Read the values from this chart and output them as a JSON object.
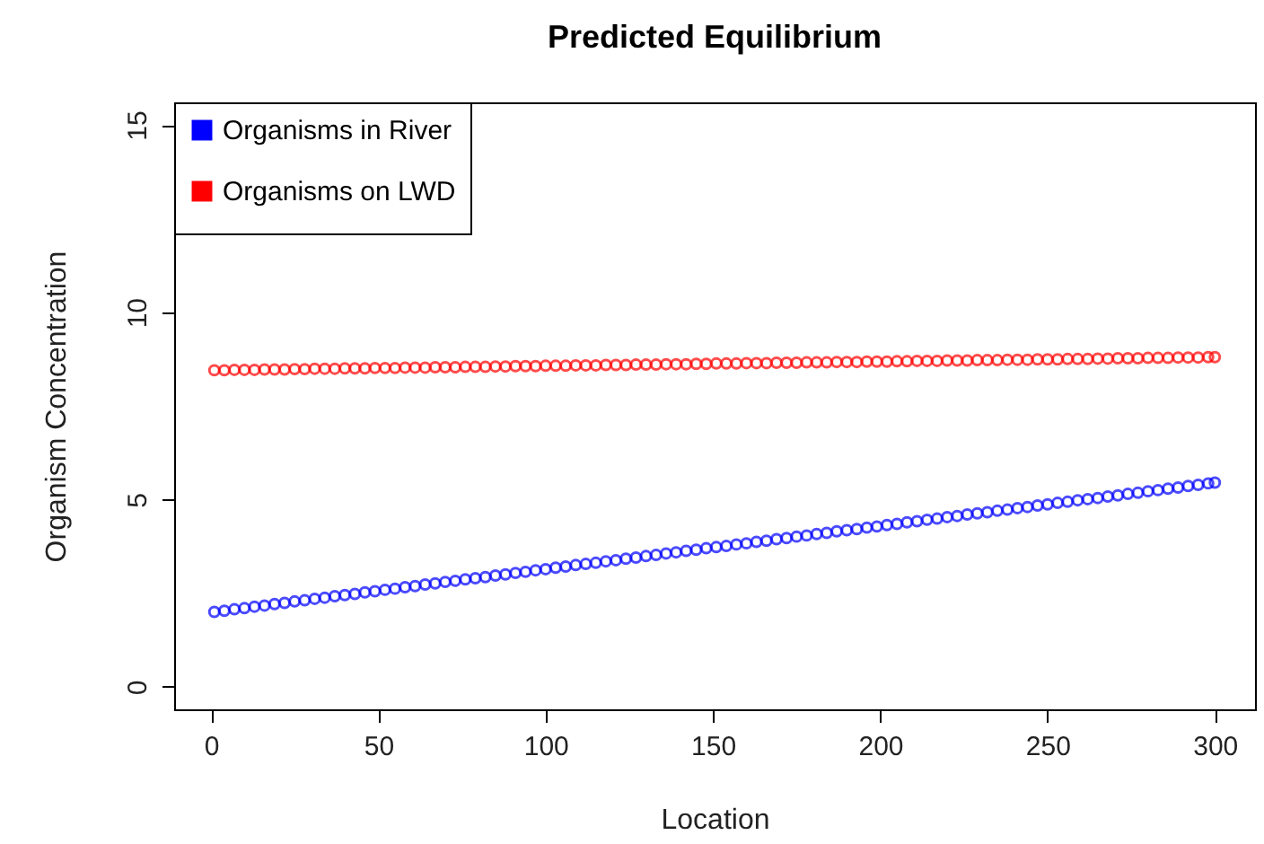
{
  "chart_data": {
    "type": "scatter",
    "title": "Predicted Equilibrium",
    "xlabel": "Location",
    "ylabel": "Organism Concentration",
    "x": [
      1,
      4,
      7,
      10,
      13,
      16,
      19,
      22,
      25,
      28,
      31,
      34,
      37,
      40,
      43,
      46,
      49,
      52,
      55,
      58,
      61,
      64,
      67,
      70,
      73,
      76,
      79,
      82,
      85,
      88,
      91,
      94,
      97,
      100,
      103,
      106,
      109,
      112,
      115,
      118,
      121,
      124,
      127,
      130,
      133,
      136,
      139,
      142,
      145,
      148,
      151,
      154,
      157,
      160,
      163,
      166,
      169,
      172,
      175,
      178,
      181,
      184,
      187,
      190,
      193,
      196,
      199,
      202,
      205,
      208,
      211,
      214,
      217,
      220,
      223,
      226,
      229,
      232,
      235,
      238,
      241,
      244,
      247,
      250,
      253,
      256,
      259,
      262,
      265,
      268,
      271,
      274,
      277,
      280,
      283,
      286,
      289,
      292,
      295,
      298,
      300
    ],
    "series": [
      {
        "name": "Organisms in River",
        "color": "#0000ff",
        "values": [
          2.0,
          2.03,
          2.07,
          2.1,
          2.14,
          2.17,
          2.21,
          2.24,
          2.28,
          2.31,
          2.35,
          2.38,
          2.42,
          2.45,
          2.48,
          2.52,
          2.55,
          2.59,
          2.62,
          2.66,
          2.69,
          2.73,
          2.76,
          2.8,
          2.83,
          2.87,
          2.9,
          2.93,
          2.97,
          3.0,
          3.04,
          3.07,
          3.11,
          3.14,
          3.18,
          3.21,
          3.25,
          3.28,
          3.31,
          3.35,
          3.38,
          3.42,
          3.45,
          3.49,
          3.52,
          3.56,
          3.59,
          3.63,
          3.66,
          3.7,
          3.73,
          3.76,
          3.8,
          3.83,
          3.87,
          3.9,
          3.94,
          3.97,
          4.01,
          4.04,
          4.08,
          4.11,
          4.15,
          4.18,
          4.21,
          4.25,
          4.28,
          4.32,
          4.35,
          4.39,
          4.42,
          4.46,
          4.49,
          4.53,
          4.56,
          4.6,
          4.63,
          4.66,
          4.7,
          4.73,
          4.77,
          4.8,
          4.84,
          4.87,
          4.91,
          4.94,
          4.98,
          5.01,
          5.04,
          5.08,
          5.11,
          5.15,
          5.18,
          5.22,
          5.25,
          5.29,
          5.32,
          5.36,
          5.39,
          5.43,
          5.45
        ]
      },
      {
        "name": "Organisms on LWD",
        "color": "#ff0000",
        "values": [
          8.45,
          8.45,
          8.46,
          8.46,
          8.46,
          8.47,
          8.47,
          8.47,
          8.48,
          8.48,
          8.49,
          8.49,
          8.49,
          8.5,
          8.5,
          8.5,
          8.51,
          8.51,
          8.51,
          8.52,
          8.52,
          8.52,
          8.53,
          8.53,
          8.53,
          8.54,
          8.54,
          8.54,
          8.55,
          8.55,
          8.56,
          8.56,
          8.56,
          8.57,
          8.57,
          8.57,
          8.58,
          8.58,
          8.58,
          8.59,
          8.59,
          8.59,
          8.6,
          8.6,
          8.6,
          8.61,
          8.61,
          8.61,
          8.62,
          8.62,
          8.63,
          8.63,
          8.63,
          8.64,
          8.64,
          8.64,
          8.65,
          8.65,
          8.65,
          8.66,
          8.66,
          8.66,
          8.67,
          8.67,
          8.67,
          8.68,
          8.68,
          8.68,
          8.69,
          8.69,
          8.7,
          8.7,
          8.7,
          8.71,
          8.71,
          8.71,
          8.72,
          8.72,
          8.72,
          8.73,
          8.73,
          8.73,
          8.74,
          8.74,
          8.74,
          8.75,
          8.75,
          8.75,
          8.76,
          8.76,
          8.77,
          8.77,
          8.77,
          8.78,
          8.78,
          8.78,
          8.79,
          8.79,
          8.79,
          8.8,
          8.8
        ]
      }
    ],
    "xlim": [
      -11,
      312
    ],
    "xticks": [
      0,
      50,
      100,
      150,
      200,
      250,
      300
    ],
    "ylim": [
      -0.6,
      15.6
    ],
    "yticks": [
      0,
      5,
      10,
      15
    ],
    "grid": false,
    "legend": "top left",
    "marker": "circle"
  }
}
